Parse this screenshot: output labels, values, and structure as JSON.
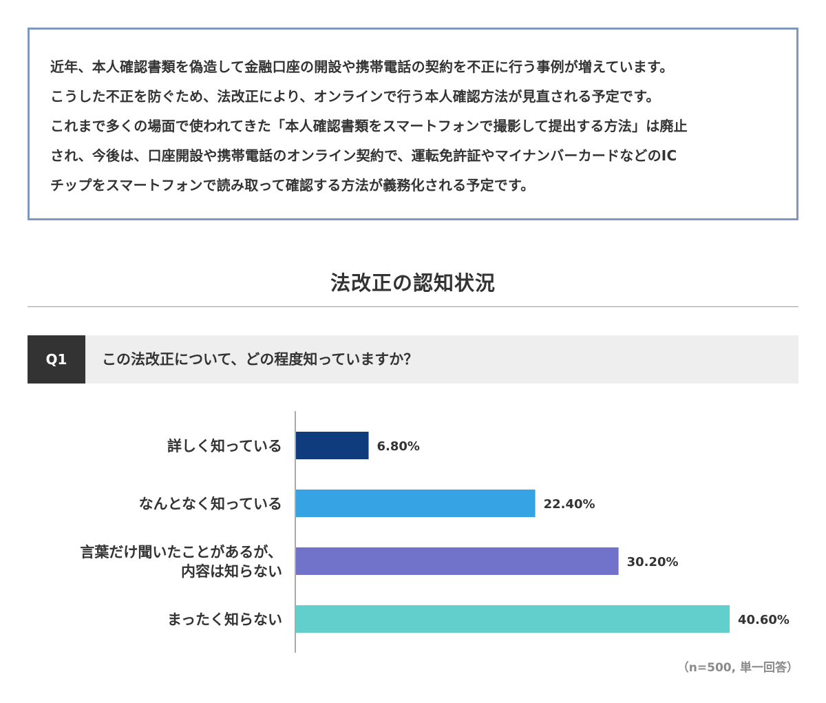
{
  "notice": {
    "lines": [
      "近年、本人確認書類を偽造して金融口座の開設や携帯電話の契約を不正に行う事例が増えています。",
      "こうした不正を防ぐため、法改正により、オンラインで行う本人確認方法が見直される予定です。",
      "これまで多くの場面で使われてきた「本人確認書類をスマートフォンで撮影して提出する方法」は廃止",
      "され、今後は、口座開設や携帯電話のオンライン契約で、運転免許証やマイナンバーカードなどのIC",
      "チップをスマートフォンで読み取って確認する方法が義務化される予定です。"
    ],
    "border_color": "#7f97c0"
  },
  "section_title": "法改正の認知状況",
  "question": {
    "badge": "Q1",
    "text": "この法改正について、どの程度知っていますか？"
  },
  "chart_data": {
    "type": "bar",
    "orientation": "horizontal",
    "categories": [
      [
        "詳しく知っている"
      ],
      [
        "なんとなく知っている"
      ],
      [
        "言葉だけ聞いたことがあるが、",
        "内容は知らない"
      ],
      [
        "まったく知らない"
      ]
    ],
    "values": [
      6.8,
      22.4,
      30.2,
      40.6
    ],
    "value_labels": [
      "6.80%",
      "22.40%",
      "30.20%",
      "40.60%"
    ],
    "colors": [
      "#0e3c7c",
      "#36a3e4",
      "#7172c9",
      "#63cfcd"
    ],
    "title": "",
    "xlabel": "",
    "ylabel": "",
    "grid": false,
    "legend": "none",
    "note": "（n=500, 単一回答）"
  }
}
